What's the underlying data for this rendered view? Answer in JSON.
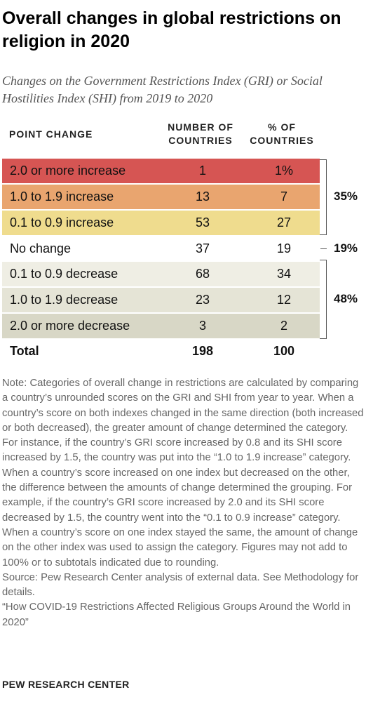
{
  "chart_data": {
    "type": "table",
    "title": "Overall changes in global restrictions on religion in 2020",
    "subtitle": "Changes on the Government Restrictions Index (GRI) or Social Hostilities Index (SHI) from 2019 to 2020",
    "columns": [
      "POINT CHANGE",
      "NUMBER OF COUNTRIES",
      "% OF COUNTRIES"
    ],
    "header_lines": {
      "number": [
        "NUMBER OF",
        "COUNTRIES"
      ],
      "percent": [
        "% OF",
        "COUNTRIES"
      ]
    },
    "rows": [
      {
        "label": "2.0 or more increase",
        "number": 1,
        "percent": 1,
        "percent_text": "1%",
        "color": "#d65553"
      },
      {
        "label": "1.0 to 1.9 increase",
        "number": 13,
        "percent": 7,
        "percent_text": "7",
        "color": "#e9a56f"
      },
      {
        "label": "0.1 to 0.9 increase",
        "number": 53,
        "percent": 27,
        "percent_text": "27",
        "color": "#efdc8e"
      },
      {
        "label": "No change",
        "number": 37,
        "percent": 19,
        "percent_text": "19",
        "color": "#ffffff"
      },
      {
        "label": "0.1 to 0.9 decrease",
        "number": 68,
        "percent": 34,
        "percent_text": "34",
        "color": "#efeee4"
      },
      {
        "label": "1.0 to 1.9 decrease",
        "number": 23,
        "percent": 12,
        "percent_text": "12",
        "color": "#e5e4d6"
      },
      {
        "label": "2.0 or more decrease",
        "number": 3,
        "percent": 2,
        "percent_text": "2",
        "color": "#d8d7c6"
      }
    ],
    "total": {
      "label": "Total",
      "number": 198,
      "percent": 100
    },
    "subtotals": [
      {
        "text": "35%",
        "value": 35
      },
      {
        "text": "19%",
        "value": 19
      },
      {
        "text": "48%",
        "value": 48
      }
    ],
    "note": "Note: Categories of overall change in restrictions are calculated by comparing a country’s unrounded scores on the GRI and SHI from year to year. When a country’s score on both indexes changed in the same direction (both increased or both decreased), the greater amount of change determined the category. For instance, if the country’s GRI score increased by 0.8 and its SHI score increased by 1.5, the country was put into the “1.0 to 1.9 increase” category. When a country’s score increased on one index but decreased on the other, the difference between the amounts of change determined the grouping. For example, if the country’s GRI score increased by 2.0 and its SHI score decreased by 1.5, the country went into the “0.1 to 0.9 increase” category. When a country’s score on one index stayed the same, the amount of change on the other index was used to assign the category. Figures may not add to 100% or to subtotals indicated due to rounding.",
    "source": "Source: Pew Research Center analysis of external data. See Methodology for details.",
    "report_title": "“How COVID-19 Restrictions Affected Religious Groups Around the World in 2020”",
    "footer": "PEW RESEARCH CENTER"
  }
}
